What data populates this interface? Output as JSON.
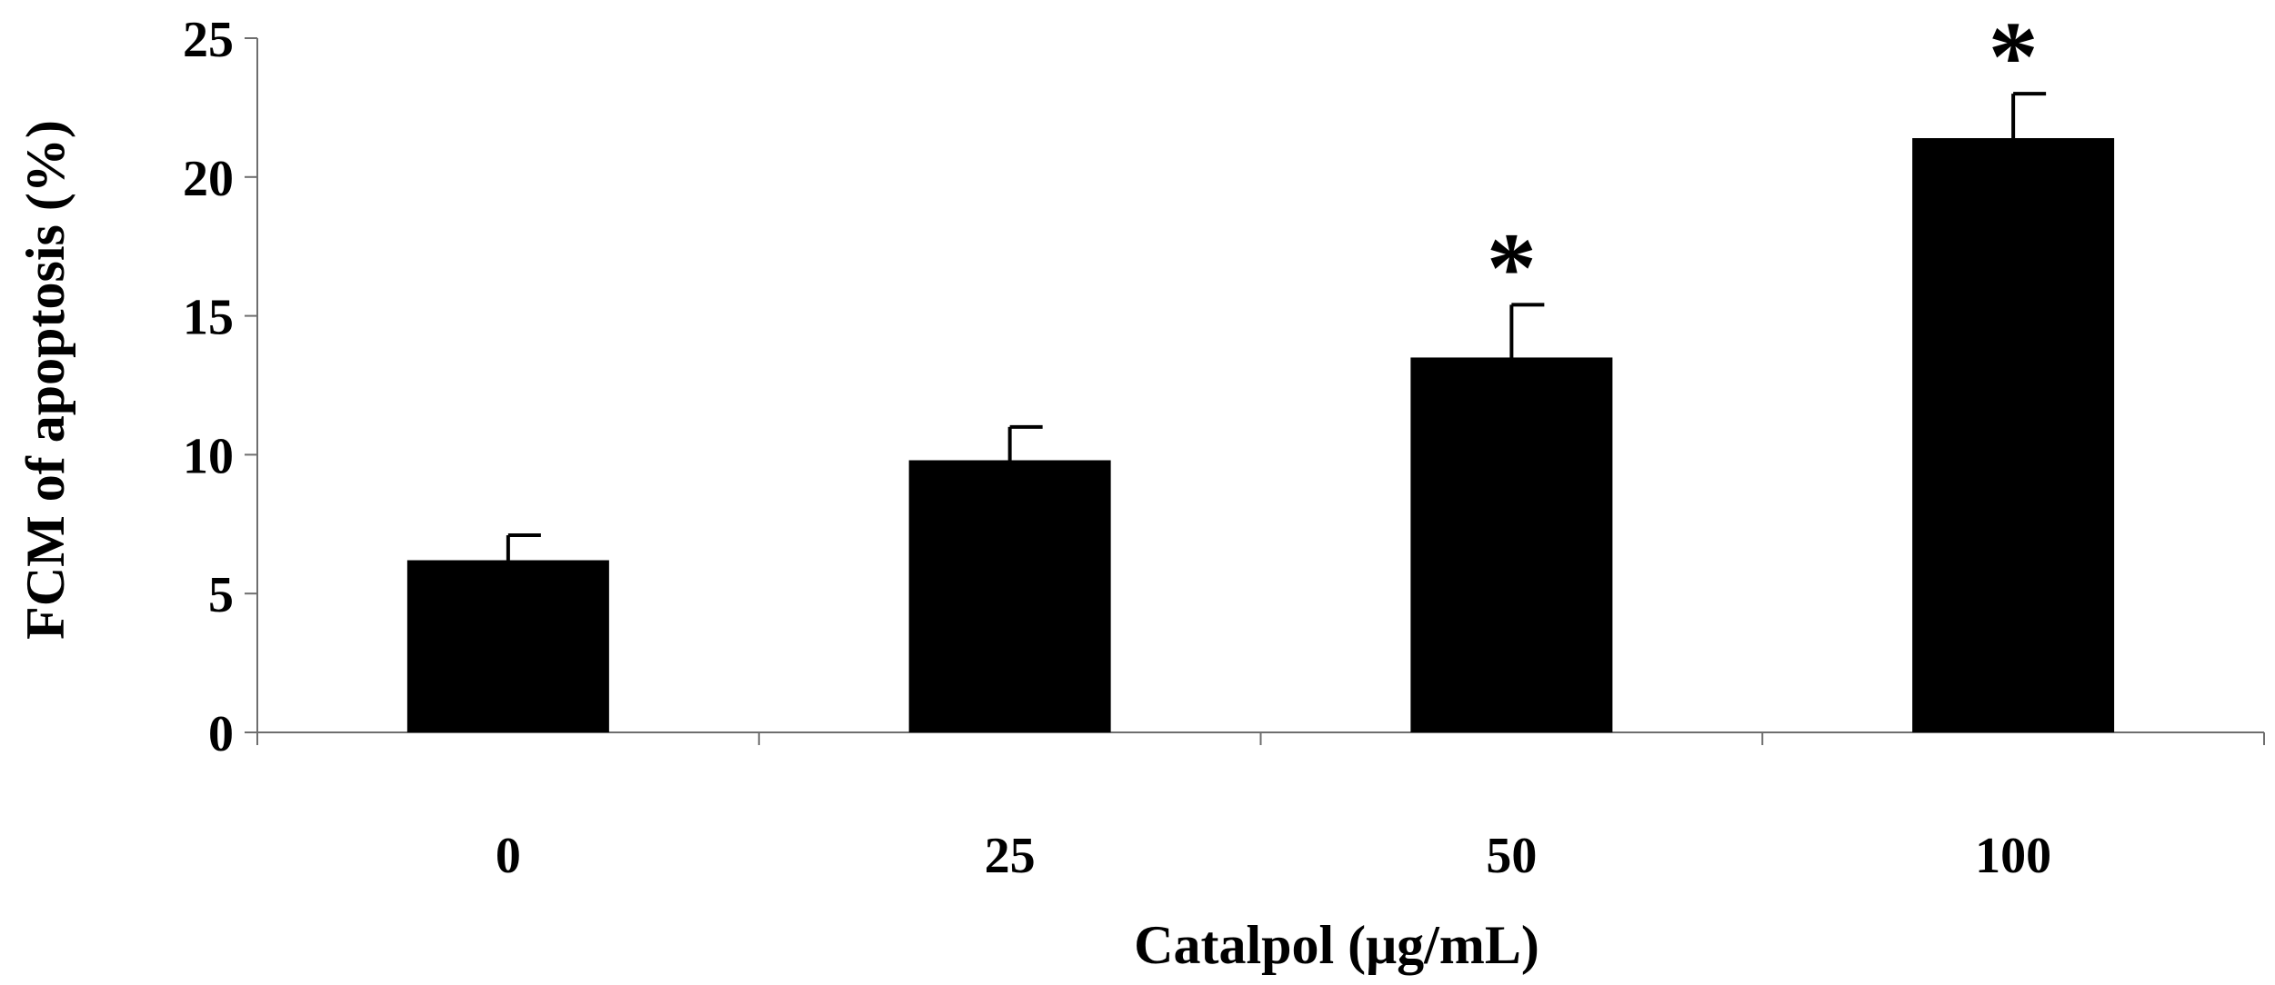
{
  "chart_data": {
    "type": "bar",
    "title": "",
    "xlabel": "Catalpol (μg/mL)",
    "ylabel": "FCM of apoptosis (%)",
    "ylim": [
      0,
      25
    ],
    "yticks": [
      "0",
      "5",
      "10",
      "15",
      "20",
      "25"
    ],
    "categories": [
      "0",
      "25",
      "50",
      "100"
    ],
    "values": [
      6.2,
      9.8,
      13.5,
      21.4
    ],
    "error_upper": [
      0.9,
      1.2,
      1.9,
      1.6
    ],
    "significance": [
      "",
      "",
      "*",
      "*"
    ],
    "bar_color": "#000000",
    "grid": false
  }
}
